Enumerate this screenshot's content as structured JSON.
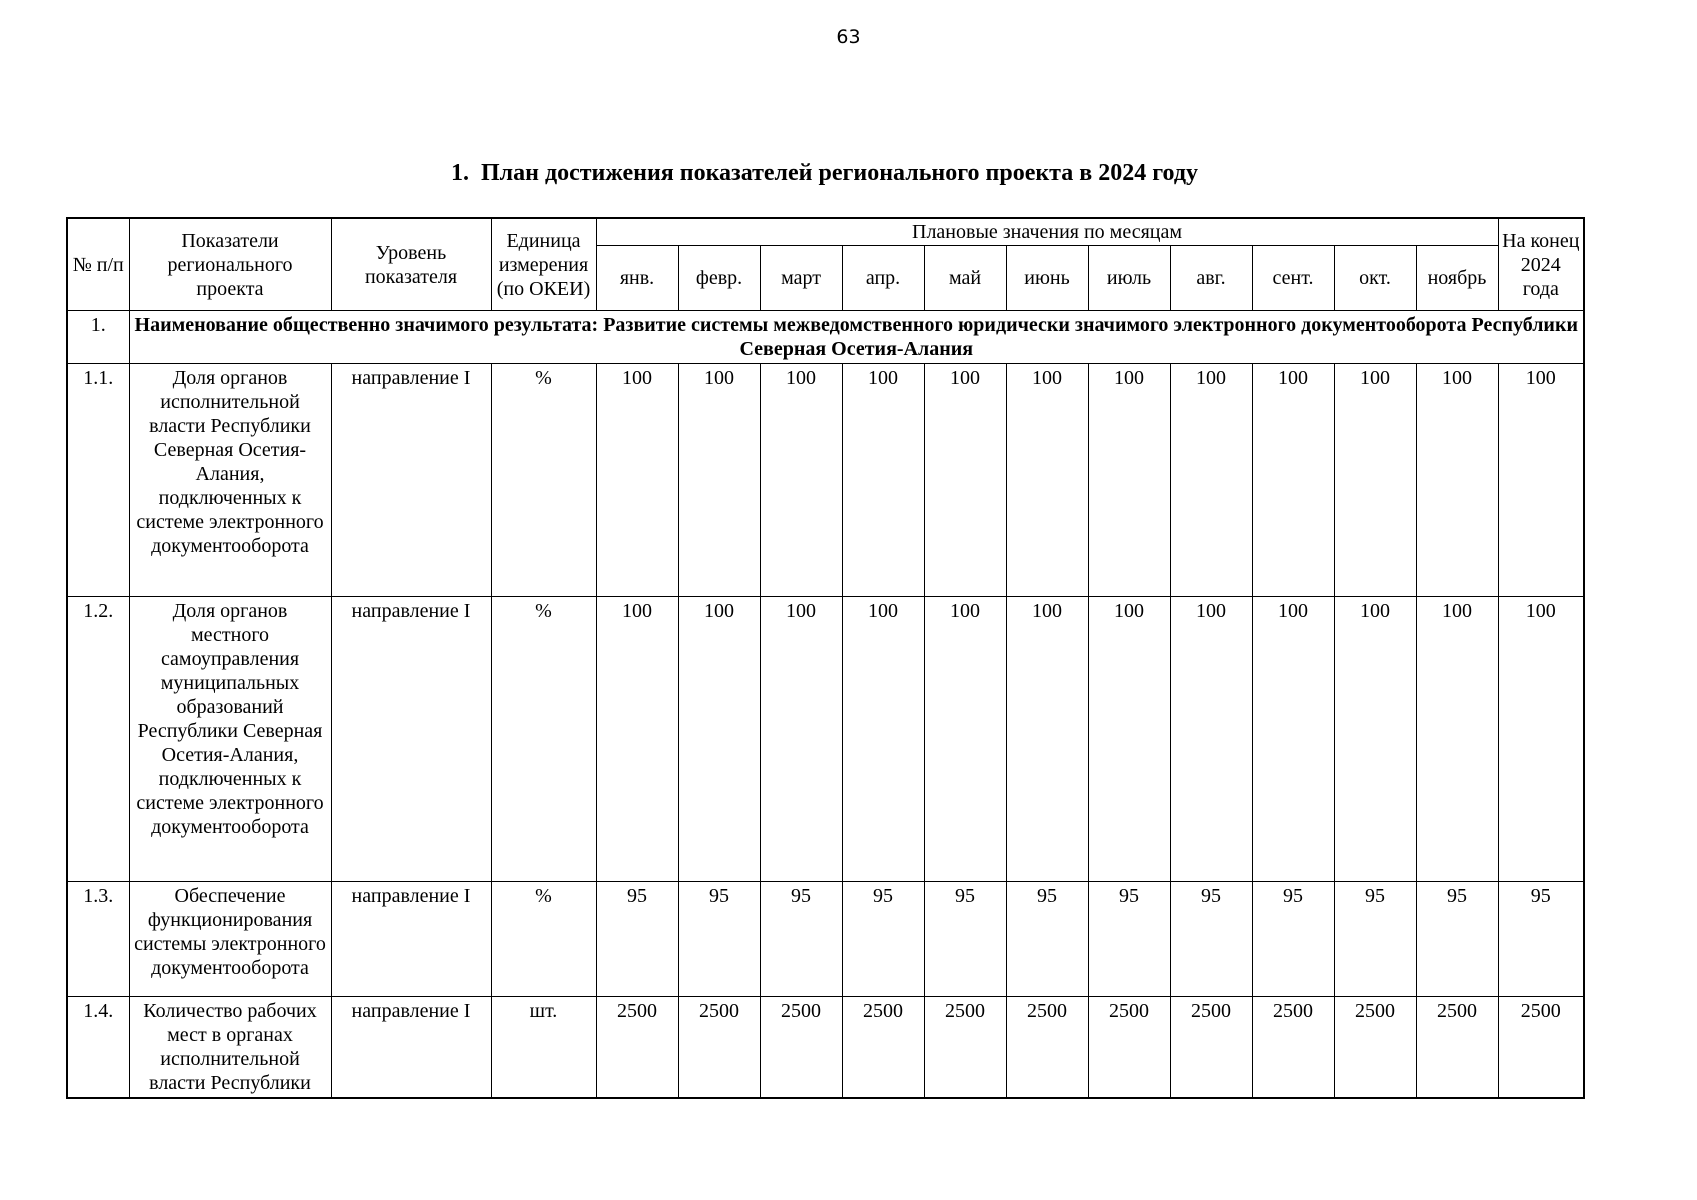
{
  "page": {
    "number": "63"
  },
  "title": "1.  План достижения показателей регионального проекта в 2024 году",
  "table": {
    "headers": {
      "num": "№ п/п",
      "indicator": "Показатели регионального проекта",
      "level": "Уровень показателя",
      "unit": "Единица измерения (по ОКЕИ)",
      "monthly_group": "Плановые значения по месяцам",
      "months": [
        "янв.",
        "февр.",
        "март",
        "апр.",
        "май",
        "июнь",
        "июль",
        "авг.",
        "сент.",
        "окт.",
        "ноябрь"
      ],
      "year_end": "На конец 2024 года"
    },
    "result_row": {
      "num": "1.",
      "text": "Наименование общественно значимого результата: Развитие системы межведомственного юридически значимого электронного документооборота Республики Северная Осетия-Алания"
    },
    "rows": [
      {
        "num": "1.1.",
        "indicator": "Доля органов исполнительной власти Республики Северная Осетия-Алания, подключенных к системе электронного документооборота",
        "level": "направление I",
        "unit": "%",
        "monthly": [
          "100",
          "100",
          "100",
          "100",
          "100",
          "100",
          "100",
          "100",
          "100",
          "100",
          "100"
        ],
        "year_end": "100"
      },
      {
        "num": "1.2.",
        "indicator": "Доля органов местного самоуправления муниципальных образований Республики Северная Осетия-Алания, подключенных к системе электронного документооборота",
        "level": "направление I",
        "unit": "%",
        "monthly": [
          "100",
          "100",
          "100",
          "100",
          "100",
          "100",
          "100",
          "100",
          "100",
          "100",
          "100"
        ],
        "year_end": "100"
      },
      {
        "num": "1.3.",
        "indicator": "Обеспечение функционирования системы электронного документооборота",
        "level": "направление I",
        "unit": "%",
        "monthly": [
          "95",
          "95",
          "95",
          "95",
          "95",
          "95",
          "95",
          "95",
          "95",
          "95",
          "95"
        ],
        "year_end": "95"
      },
      {
        "num": "1.4.",
        "indicator": "Количество рабочих мест в органах исполнительной власти Республики",
        "level": "направление I",
        "unit": "шт.",
        "monthly": [
          "2500",
          "2500",
          "2500",
          "2500",
          "2500",
          "2500",
          "2500",
          "2500",
          "2500",
          "2500",
          "2500"
        ],
        "year_end": "2500"
      }
    ]
  }
}
